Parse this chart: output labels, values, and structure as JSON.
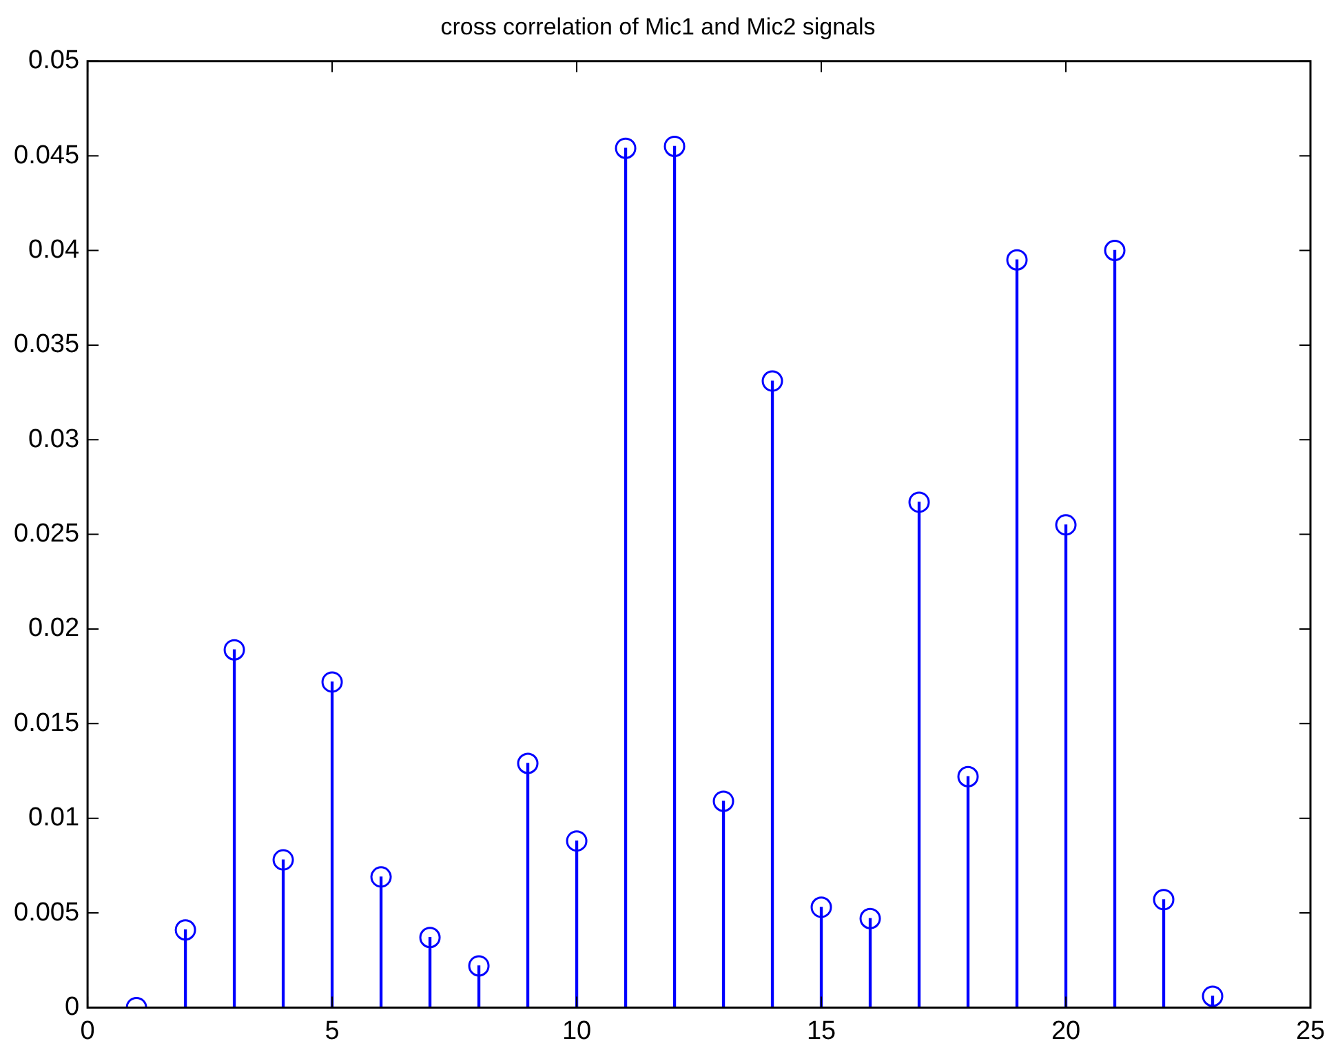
{
  "chart_data": {
    "type": "lollipop",
    "title": "cross correlation of Mic1 and Mic2 signals",
    "x": [
      1,
      2,
      3,
      4,
      5,
      6,
      7,
      8,
      9,
      10,
      11,
      12,
      13,
      14,
      15,
      16,
      17,
      18,
      19,
      20,
      21,
      22,
      23
    ],
    "values": [
      0,
      0.0041,
      0.0189,
      0.0078,
      0.0172,
      0.0069,
      0.0037,
      0.0022,
      0.0129,
      0.0088,
      0.0454,
      0.0455,
      0.0109,
      0.0331,
      0.0053,
      0.0047,
      0.0267,
      0.0122,
      0.0395,
      0.0255,
      0.04,
      0.0057,
      0.0006
    ],
    "color": "#0000ff",
    "marker": "circle",
    "grid": false,
    "legend": false,
    "xlim": [
      0,
      25
    ],
    "xticks": [
      0,
      5,
      10,
      15,
      20,
      25
    ],
    "ylim": [
      0,
      0.05
    ],
    "yticks": [
      0,
      0.005,
      0.01,
      0.015,
      0.02,
      0.025,
      0.03,
      0.035,
      0.04,
      0.045,
      0.05
    ]
  }
}
